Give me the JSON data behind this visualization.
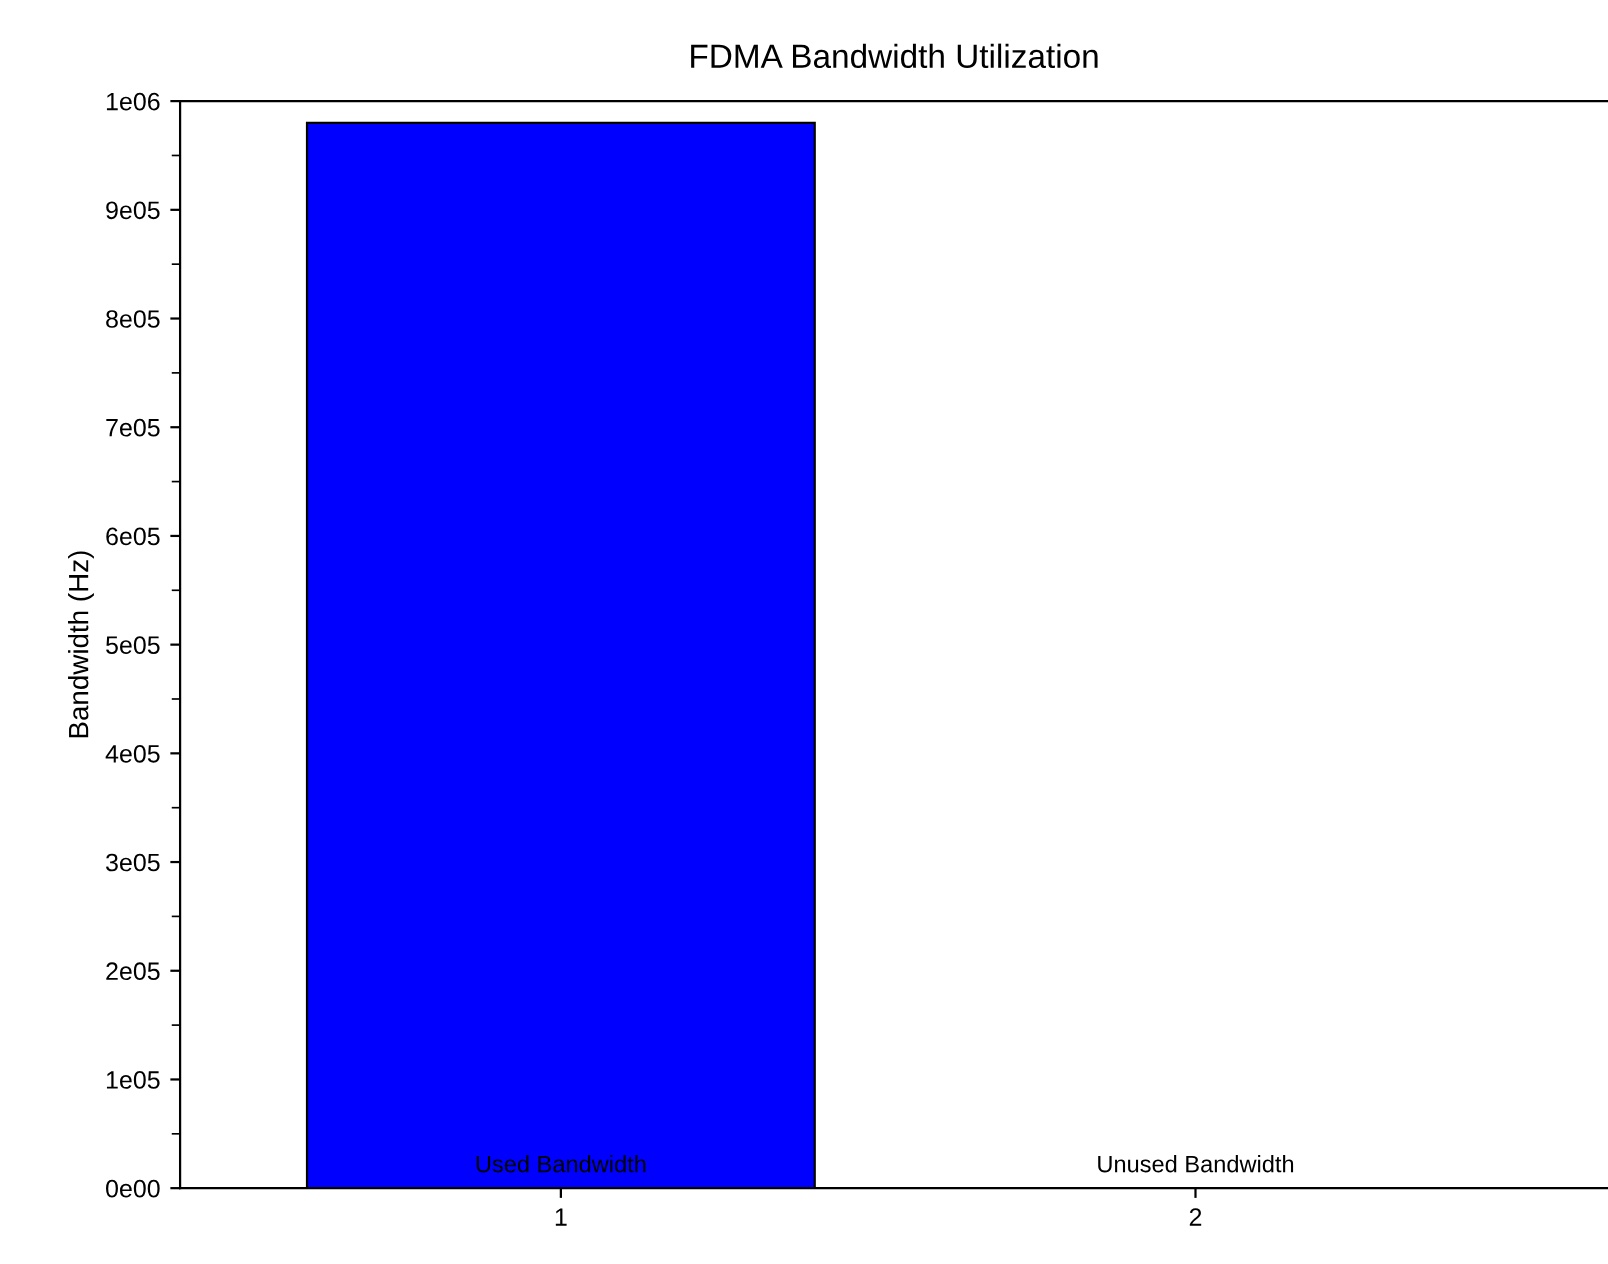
{
  "chart_data": {
    "type": "bar",
    "title": "FDMA Bandwidth Utilization",
    "ylabel": "Bandwidth (Hz)",
    "x": [
      1,
      2
    ],
    "values": [
      980000,
      0
    ],
    "color": "#0000ff",
    "xlim": [
      0.4,
      2.65
    ],
    "xticks": [
      1,
      2
    ],
    "ylim": [
      0,
      1000000
    ],
    "yticks": [
      {
        "value": 0,
        "label": "0e00"
      },
      {
        "value": 100000,
        "label": "1e05"
      },
      {
        "value": 200000,
        "label": "2e05"
      },
      {
        "value": 300000,
        "label": "3e05"
      },
      {
        "value": 400000,
        "label": "4e05"
      },
      {
        "value": 500000,
        "label": "5e05"
      },
      {
        "value": 600000,
        "label": "6e05"
      },
      {
        "value": 700000,
        "label": "7e05"
      },
      {
        "value": 800000,
        "label": "8e05"
      },
      {
        "value": 900000,
        "label": "9e05"
      },
      {
        "value": 1000000,
        "label": "1e06"
      }
    ],
    "annotations": [
      {
        "text": "Used Bandwidth",
        "x": 1,
        "y": 0
      },
      {
        "text": "Unused Bandwidth",
        "x": 2,
        "y": 0
      }
    ],
    "grid": false,
    "legend": false
  }
}
